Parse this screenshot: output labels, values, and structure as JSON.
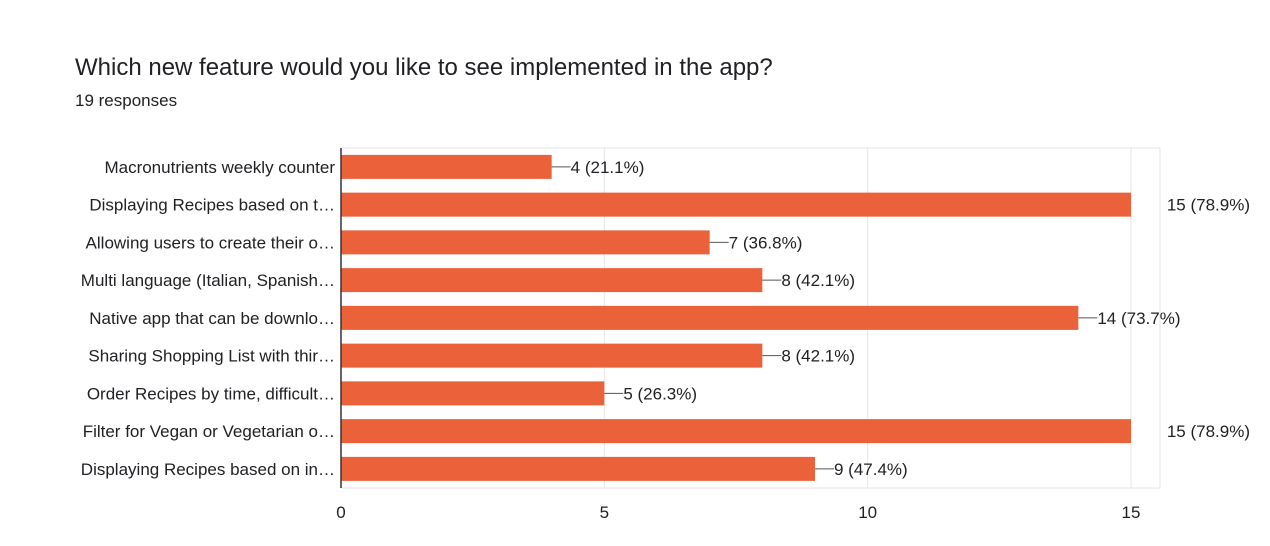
{
  "title": "Which new feature would you like to see implemented in the app?",
  "subtitle": "19 responses",
  "colors": {
    "bar": "#ea613a",
    "grid": "#e6e6e6",
    "axis": "#333333",
    "text": "#202124"
  },
  "chart_data": {
    "type": "bar",
    "orientation": "horizontal",
    "categories": [
      "Macronutrients weekly counter",
      "Displaying Recipes based on t…",
      "Allowing users to create their o…",
      "Multi language (Italian, Spanish…",
      "Native app that can be downlo…",
      "Sharing Shopping List with thir…",
      "Order Recipes by time, difficult…",
      "Filter for Vegan or Vegetarian o…",
      "Displaying Recipes based on in…"
    ],
    "values": [
      4,
      15,
      7,
      8,
      14,
      8,
      5,
      15,
      9
    ],
    "data_labels": [
      "4 (21.1%)",
      "15 (78.9%)",
      "7 (36.8%)",
      "8 (42.1%)",
      "14 (73.7%)",
      "8 (42.1%)",
      "5 (26.3%)",
      "15 (78.9%)",
      "9 (47.4%)"
    ],
    "x_ticks": [
      0,
      5,
      10,
      15
    ],
    "xlim": [
      0,
      15
    ],
    "grid": true
  }
}
